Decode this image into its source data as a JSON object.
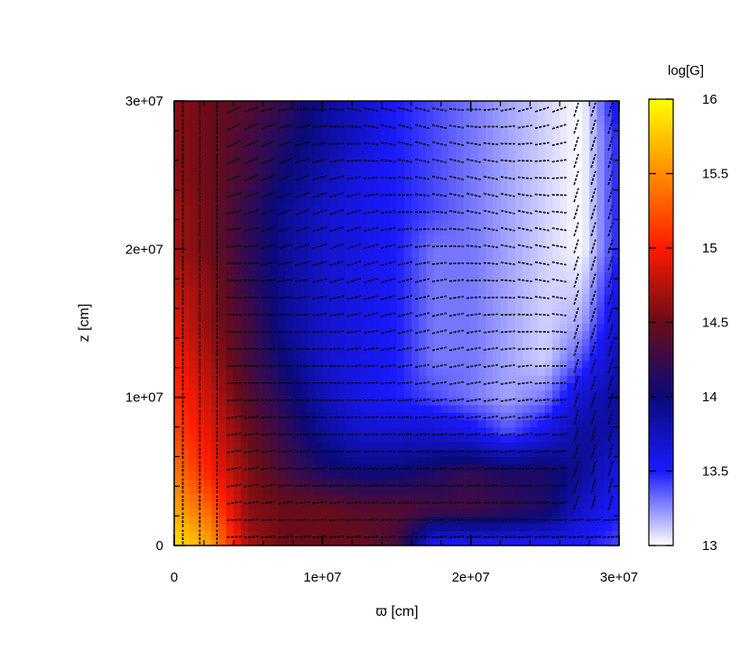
{
  "chart_data": {
    "type": "heatmap",
    "title": "",
    "xlabel": "ϖ [cm]",
    "ylabel": "z [cm]",
    "xlim": [
      0,
      30000000
    ],
    "ylim": [
      0,
      30000000
    ],
    "x_ticks": [
      {
        "value": 0,
        "label": "0"
      },
      {
        "value": 10000000,
        "label": "1e+07"
      },
      {
        "value": 20000000,
        "label": "2e+07"
      },
      {
        "value": 30000000,
        "label": "3e+07"
      }
    ],
    "y_ticks": [
      {
        "value": 0,
        "label": "0"
      },
      {
        "value": 10000000,
        "label": "1e+07"
      },
      {
        "value": 20000000,
        "label": "2e+07"
      },
      {
        "value": 30000000,
        "label": "3e+07"
      }
    ],
    "colorbar": {
      "label": "log[G]",
      "range": [
        13,
        16
      ],
      "ticks": [
        {
          "value": 13,
          "label": "13"
        },
        {
          "value": 13.5,
          "label": "13.5"
        },
        {
          "value": 14,
          "label": "14"
        },
        {
          "value": 14.5,
          "label": "14.5"
        },
        {
          "value": 15,
          "label": "15"
        },
        {
          "value": 15.5,
          "label": "15.5"
        },
        {
          "value": 16,
          "label": "16"
        }
      ],
      "colormap": [
        {
          "value": 13.0,
          "color": "#ffffff"
        },
        {
          "value": 13.5,
          "color": "#1a1aff"
        },
        {
          "value": 14.0,
          "color": "#0a0a7a"
        },
        {
          "value": 14.5,
          "color": "#6a0c18"
        },
        {
          "value": 15.0,
          "color": "#ff1a00"
        },
        {
          "value": 15.5,
          "color": "#ff8c00"
        },
        {
          "value": 16.0,
          "color": "#ffff00"
        }
      ]
    },
    "field_grid": {
      "x_mm": [
        0,
        2.5,
        5,
        7.5,
        10,
        12.5,
        15,
        17.5,
        20,
        22.5,
        25,
        27.5,
        30
      ],
      "z_mm": [
        0,
        2.5,
        5,
        7.5,
        10,
        12.5,
        15,
        17.5,
        20,
        22.5,
        25,
        27.5,
        30
      ],
      "logG": [
        [
          15.9,
          15.6,
          14.7,
          14.5,
          14.5,
          14.5,
          14.3,
          13.5,
          13.5,
          13.5,
          13.5,
          13.5,
          13.4
        ],
        [
          15.6,
          15.3,
          14.6,
          14.5,
          14.5,
          14.4,
          14.4,
          14.3,
          14.3,
          14.2,
          14.1,
          13.7,
          13.5
        ],
        [
          15.4,
          15.0,
          14.6,
          14.3,
          14.1,
          14.0,
          14.0,
          14.1,
          14.2,
          14.1,
          14.1,
          13.9,
          13.6
        ],
        [
          15.2,
          14.9,
          14.5,
          14.2,
          13.9,
          13.7,
          13.7,
          13.7,
          13.6,
          13.4,
          13.6,
          13.9,
          13.8
        ],
        [
          15.1,
          14.8,
          14.4,
          14.1,
          13.8,
          13.6,
          13.5,
          13.4,
          13.3,
          13.2,
          13.3,
          13.7,
          13.9
        ],
        [
          15.0,
          14.7,
          14.3,
          14.0,
          13.7,
          13.6,
          13.5,
          13.3,
          13.3,
          13.2,
          13.1,
          13.4,
          13.8
        ],
        [
          14.9,
          14.6,
          14.3,
          13.9,
          13.7,
          13.6,
          13.5,
          13.3,
          13.3,
          13.2,
          13.1,
          13.2,
          13.7
        ],
        [
          14.8,
          14.6,
          14.2,
          13.9,
          13.7,
          13.6,
          13.5,
          13.3,
          13.3,
          13.2,
          13.1,
          13.1,
          13.6
        ],
        [
          14.7,
          14.5,
          14.2,
          13.9,
          13.7,
          13.6,
          13.5,
          13.3,
          13.3,
          13.2,
          13.1,
          13.0,
          13.5
        ],
        [
          14.7,
          14.5,
          14.2,
          13.9,
          13.7,
          13.6,
          13.5,
          13.4,
          13.3,
          13.2,
          13.1,
          13.0,
          13.5
        ],
        [
          14.6,
          14.5,
          14.3,
          14.0,
          13.8,
          13.6,
          13.5,
          13.4,
          13.3,
          13.2,
          13.1,
          13.0,
          13.5
        ],
        [
          14.6,
          14.5,
          14.3,
          14.1,
          13.9,
          13.7,
          13.5,
          13.4,
          13.3,
          13.2,
          13.1,
          13.0,
          13.5
        ],
        [
          14.6,
          14.5,
          14.4,
          14.2,
          13.9,
          13.7,
          13.5,
          13.4,
          13.3,
          13.2,
          13.1,
          13.0,
          13.6
        ]
      ]
    },
    "field_direction": "field-line vectors overlaid as black arrows",
    "grid": false,
    "legend": "none"
  }
}
